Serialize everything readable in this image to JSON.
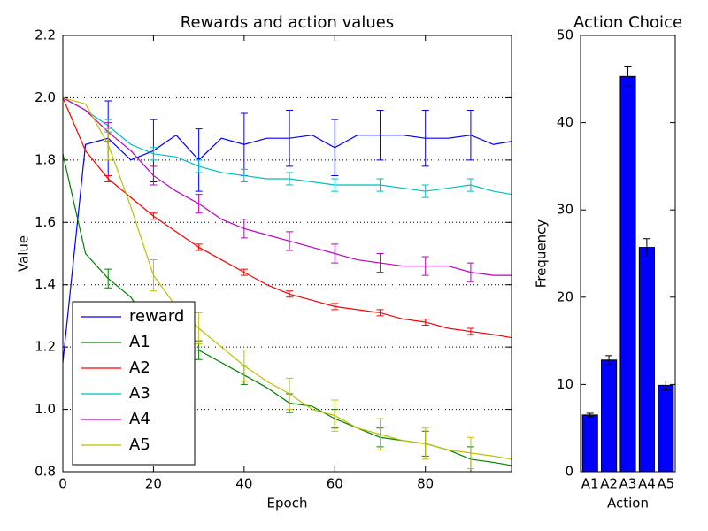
{
  "chart_data": [
    {
      "type": "line",
      "title": "Rewards and action values",
      "x_label": "Epoch",
      "y_label": "Value",
      "x": [
        0,
        5,
        10,
        15,
        20,
        25,
        30,
        35,
        40,
        45,
        50,
        55,
        60,
        65,
        70,
        75,
        80,
        85,
        90,
        95,
        99
      ],
      "xlim": [
        0,
        99
      ],
      "xticks": [
        0,
        20,
        40,
        60,
        80
      ],
      "ylim": [
        0.8,
        2.2
      ],
      "yticks": [
        0.8,
        {
          "value": 1.0,
          "label": "1.0"
        },
        1.2,
        1.4,
        1.6,
        1.8,
        {
          "value": 2.0,
          "label": "2.0"
        },
        2.2
      ],
      "grid": true,
      "legend": "lower left",
      "series": [
        {
          "name": "reward",
          "color": "#0000ff",
          "values": [
            1.15,
            1.85,
            1.87,
            1.8,
            1.83,
            1.88,
            1.8,
            1.87,
            1.85,
            1.87,
            1.87,
            1.88,
            1.84,
            1.88,
            1.88,
            1.88,
            1.87,
            1.87,
            1.88,
            1.85,
            1.86
          ],
          "errors": [
            null,
            null,
            0.12,
            null,
            0.1,
            null,
            0.1,
            null,
            0.1,
            null,
            0.09,
            null,
            0.09,
            null,
            0.08,
            null,
            0.09,
            null,
            0.08,
            null,
            null
          ]
        },
        {
          "name": "A1",
          "color": "#008000",
          "values": [
            1.82,
            1.5,
            1.42,
            1.36,
            1.25,
            1.19,
            1.19,
            1.15,
            1.11,
            1.07,
            1.02,
            1.01,
            0.97,
            0.94,
            0.91,
            0.9,
            0.89,
            0.87,
            0.84,
            0.83,
            0.82
          ],
          "errors": [
            null,
            null,
            0.03,
            null,
            0.02,
            null,
            0.03,
            null,
            0.03,
            null,
            0.03,
            null,
            0.03,
            null,
            0.03,
            null,
            0.04,
            null,
            0.04,
            null,
            null
          ]
        },
        {
          "name": "A2",
          "color": "#ff0000",
          "values": [
            2.0,
            1.83,
            1.74,
            1.68,
            1.62,
            1.57,
            1.52,
            1.48,
            1.44,
            1.4,
            1.37,
            1.35,
            1.33,
            1.32,
            1.31,
            1.29,
            1.28,
            1.26,
            1.25,
            1.24,
            1.23
          ],
          "errors": [
            null,
            null,
            0.01,
            null,
            0.01,
            null,
            0.01,
            null,
            0.01,
            null,
            0.01,
            null,
            0.01,
            null,
            0.01,
            null,
            0.01,
            null,
            0.01,
            null,
            null
          ]
        },
        {
          "name": "A3",
          "color": "#00bfbf",
          "values": [
            2.0,
            1.96,
            1.91,
            1.85,
            1.82,
            1.81,
            1.78,
            1.76,
            1.75,
            1.74,
            1.74,
            1.73,
            1.72,
            1.72,
            1.72,
            1.71,
            1.7,
            1.71,
            1.72,
            1.7,
            1.69
          ],
          "errors": [
            null,
            null,
            0.02,
            null,
            0.02,
            null,
            0.02,
            null,
            0.02,
            null,
            0.02,
            null,
            0.02,
            null,
            0.02,
            null,
            0.02,
            null,
            0.02,
            null,
            null
          ]
        },
        {
          "name": "A4",
          "color": "#bf00bf",
          "values": [
            2.0,
            1.96,
            1.89,
            1.83,
            1.75,
            1.7,
            1.66,
            1.61,
            1.58,
            1.56,
            1.54,
            1.52,
            1.5,
            1.48,
            1.47,
            1.46,
            1.46,
            1.46,
            1.44,
            1.43,
            1.43
          ],
          "errors": [
            null,
            null,
            0.03,
            null,
            0.03,
            null,
            0.03,
            null,
            0.03,
            null,
            0.03,
            null,
            0.03,
            null,
            0.03,
            null,
            0.03,
            null,
            0.03,
            null,
            null
          ]
        },
        {
          "name": "A5",
          "color": "#bfbf00",
          "values": [
            2.0,
            1.98,
            1.85,
            1.65,
            1.43,
            1.33,
            1.26,
            1.2,
            1.14,
            1.09,
            1.05,
            1.0,
            0.98,
            0.94,
            0.92,
            0.9,
            0.89,
            0.87,
            0.86,
            0.85,
            0.84
          ],
          "errors": [
            null,
            null,
            0.05,
            null,
            0.05,
            null,
            0.05,
            null,
            0.05,
            null,
            0.05,
            null,
            0.05,
            null,
            0.05,
            null,
            0.05,
            null,
            0.05,
            null,
            null
          ]
        }
      ]
    },
    {
      "type": "bar",
      "title": "Action Choice",
      "x_label": "Action",
      "y_label": "Frequency",
      "categories": [
        "A1",
        "A2",
        "A3",
        "A4",
        "A5"
      ],
      "values": [
        6.5,
        12.8,
        45.3,
        25.7,
        9.9
      ],
      "errors": [
        0.2,
        0.5,
        1.1,
        1.0,
        0.5
      ],
      "color": "#0000ff",
      "ylim": [
        0,
        50
      ],
      "yticks": [
        0,
        10,
        20,
        30,
        40,
        50
      ]
    }
  ]
}
